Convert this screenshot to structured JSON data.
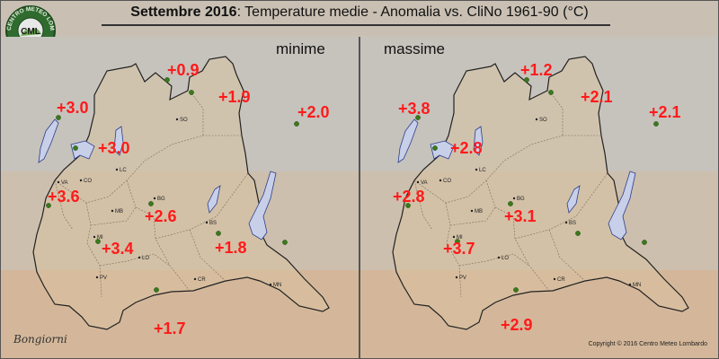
{
  "header": {
    "title_bold": "Settembre 2016",
    "title_rest": ": Temperature medie - Anomalia vs. CliNo 1961-90 (°C)"
  },
  "logo": {
    "ring_text": "CENTRO METEO LOMBARDO",
    "abbr": "CML"
  },
  "panels": [
    {
      "label": "minime",
      "values": [
        "+0.9",
        "+1.9",
        "+3.0",
        "+2.0",
        "+3.0",
        "+3.6",
        "+2.6",
        "+3.4",
        "+1.8",
        "+1.7"
      ]
    },
    {
      "label": "massime",
      "values": [
        "+1.2",
        "+2.1",
        "+3.8",
        "+2.1",
        "+2.8",
        "+2.8",
        "+3.1",
        "+3.7",
        "",
        "+2.9"
      ]
    }
  ],
  "cities": [
    "SO",
    "LC",
    "CO",
    "VA",
    "BG",
    "MB",
    "BS",
    "MI",
    "LO",
    "PV",
    "CR",
    "MN"
  ],
  "signature": "Bongiorni",
  "copyright": "Copyright © 2016 Centro Meteo Lombardo",
  "colors": {
    "value_text": "#ff1a1a",
    "station_dot": "#3a7a1a",
    "lake": "#c8cfe8"
  }
}
